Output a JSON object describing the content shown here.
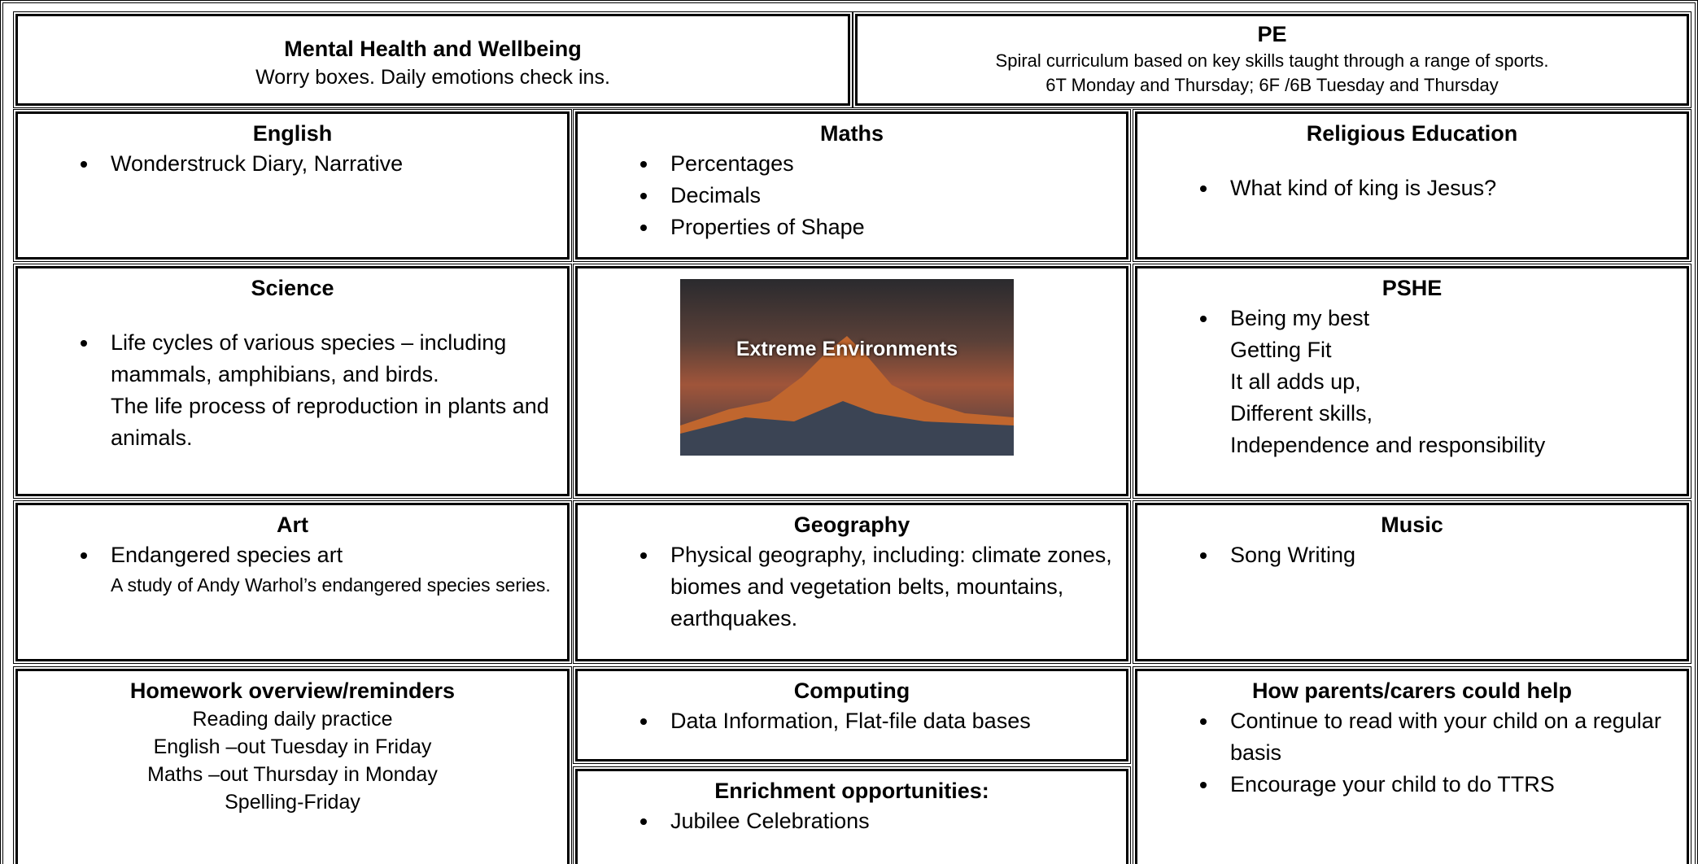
{
  "mental_health": {
    "title": "Mental Health and Wellbeing",
    "text": "Worry boxes. Daily emotions check ins."
  },
  "pe": {
    "title": "PE",
    "lines": [
      "Spiral curriculum based on key skills taught through a range of sports.",
      "6T Monday and Thursday; 6F /6B Tuesday and Thursday"
    ]
  },
  "english": {
    "title": "English",
    "bullets": [
      "Wonderstruck Diary, Narrative"
    ]
  },
  "maths": {
    "title": "Maths",
    "bullets": [
      "Percentages",
      "Decimals",
      "Properties of Shape"
    ]
  },
  "religious_education": {
    "title": "Religious Education",
    "bullets": [
      "What kind of king is Jesus?"
    ]
  },
  "science": {
    "title": "Science",
    "bullets": [
      "Life cycles of various species – including mammals, amphibians, and birds."
    ],
    "notes": [
      "The life process of reproduction in plants and animals."
    ]
  },
  "topic_image": {
    "caption": "Extreme Environments"
  },
  "pshe": {
    "title": "PSHE",
    "bullets": [
      "Being my best"
    ],
    "notes": [
      "Getting Fit",
      "It all adds up,",
      "Different skills,",
      "Independence and responsibility"
    ]
  },
  "art": {
    "title": "Art",
    "bullets": [
      "Endangered species art"
    ],
    "small_notes": [
      "A study of Andy Warhol’s endangered species series."
    ]
  },
  "geography": {
    "title": "Geography",
    "bullets": [
      "Physical geography, including: climate zones, biomes and vegetation belts, mountains, earthquakes."
    ]
  },
  "music": {
    "title": "Music",
    "bullets": [
      "Song Writing"
    ]
  },
  "homework": {
    "title": "Homework overview/reminders",
    "lines": [
      "Reading daily practice",
      "English –out Tuesday in Friday",
      "Maths –out Thursday in Monday",
      "Spelling-Friday"
    ]
  },
  "computing": {
    "title": "Computing",
    "bullets": [
      "Data Information, Flat-file data  bases"
    ]
  },
  "enrichment": {
    "title": "Enrichment opportunities:",
    "bullets": [
      "Jubilee Celebrations"
    ]
  },
  "parents": {
    "title": "How parents/carers could help",
    "bullets": [
      "Continue to read with your child on a regular basis",
      "Encourage your child to do TTRS"
    ]
  }
}
